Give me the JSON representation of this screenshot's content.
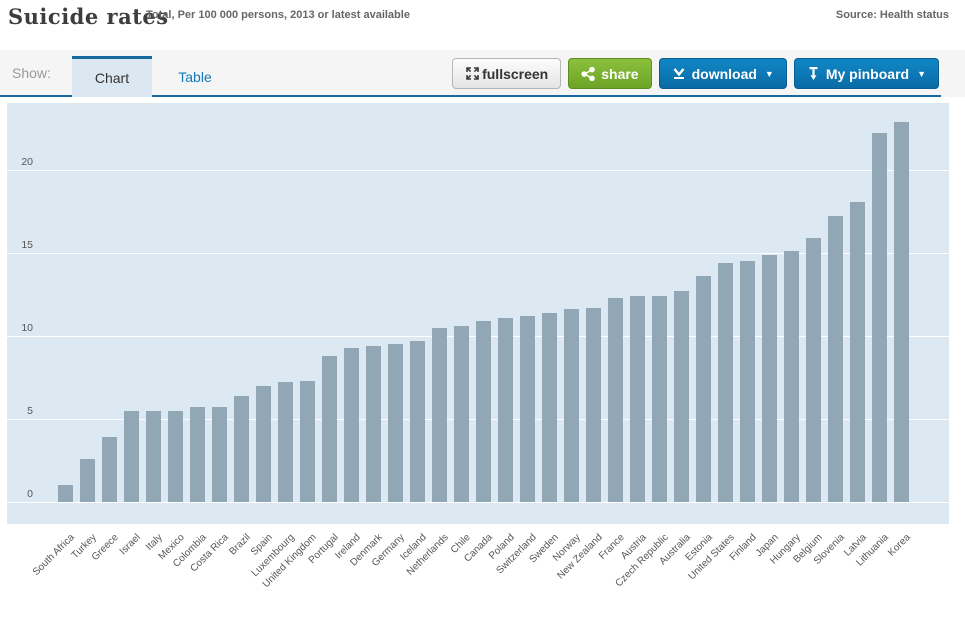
{
  "header": {
    "title": "Suicide rates",
    "subtitle": "Total, Per 100 000 persons, 2013 or latest available",
    "source": "Source: Health status"
  },
  "toolbar": {
    "show_label": "Show:",
    "tabs": [
      {
        "label": "Chart",
        "active": true
      },
      {
        "label": "Table",
        "active": false
      }
    ],
    "buttons": {
      "fullscreen": "fullscreen",
      "share": "share",
      "download": "download",
      "pinboard": "My pinboard",
      "caret": "▼"
    }
  },
  "colors": {
    "accent_blue": "#17699e",
    "button_blue": "#0d76b4",
    "button_green": "#7ab32e",
    "chart_background": "#dce9f2",
    "bar_color": "#91a7b5",
    "gridline": "#ffffff"
  },
  "chart_data": {
    "type": "bar",
    "title": "Suicide rates",
    "subtitle": "Total, Per 100 000 persons, 2013 or latest available",
    "xlabel": "",
    "ylabel": "Per 100 000 persons",
    "ylim": [
      0,
      24
    ],
    "yticks": [
      0,
      5,
      10,
      15,
      20
    ],
    "grid": true,
    "legend_position": "none",
    "categories": [
      "South Africa",
      "Turkey",
      "Greece",
      "Israel",
      "Italy",
      "Mexico",
      "Colombia",
      "Costa Rica",
      "Brazil",
      "Spain",
      "Luxembourg",
      "United Kingdom",
      "Portugal",
      "Ireland",
      "Denmark",
      "Germany",
      "Iceland",
      "Netherlands",
      "Chile",
      "Canada",
      "Poland",
      "Switzerland",
      "Sweden",
      "Norway",
      "New Zealand",
      "France",
      "Austria",
      "Czech Republic",
      "Australia",
      "Estonia",
      "United States",
      "Finland",
      "Japan",
      "Hungary",
      "Belgium",
      "Slovenia",
      "Latvia",
      "Lithuania",
      "Korea"
    ],
    "values": [
      1.0,
      2.6,
      3.9,
      5.5,
      5.5,
      5.5,
      5.7,
      5.7,
      6.4,
      7.0,
      7.2,
      7.3,
      8.8,
      9.3,
      9.4,
      9.5,
      9.7,
      10.5,
      10.6,
      10.9,
      11.1,
      11.2,
      11.4,
      11.6,
      11.7,
      12.3,
      12.4,
      12.4,
      12.7,
      13.6,
      14.4,
      14.5,
      14.9,
      15.1,
      15.9,
      17.2,
      18.1,
      22.2,
      22.9
    ]
  }
}
